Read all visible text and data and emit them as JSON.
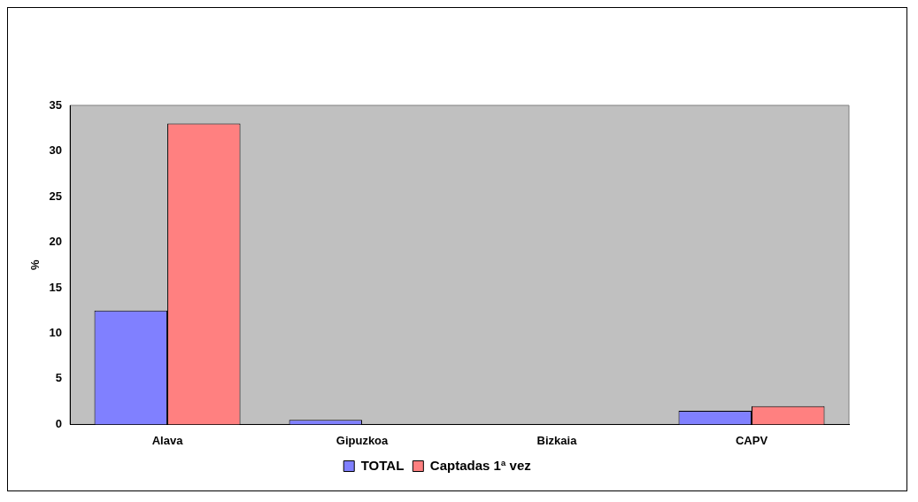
{
  "chart_data": {
    "type": "bar",
    "ylabel": "%",
    "categories": [
      "Alava",
      "Gipuzkoa",
      "Bizkaia",
      "CAPV"
    ],
    "series": [
      {
        "name": "TOTAL",
        "color": "#8080ff",
        "values": [
          12.5,
          0.5,
          0,
          1.5
        ]
      },
      {
        "name": "Captadas 1ª vez",
        "color": "#ff8080",
        "values": [
          33,
          0,
          0,
          2
        ]
      }
    ],
    "ylim": [
      0,
      35
    ],
    "yticks": [
      0,
      5,
      10,
      15,
      20,
      25,
      30,
      35
    ],
    "grid": false,
    "legend": "bottom"
  }
}
